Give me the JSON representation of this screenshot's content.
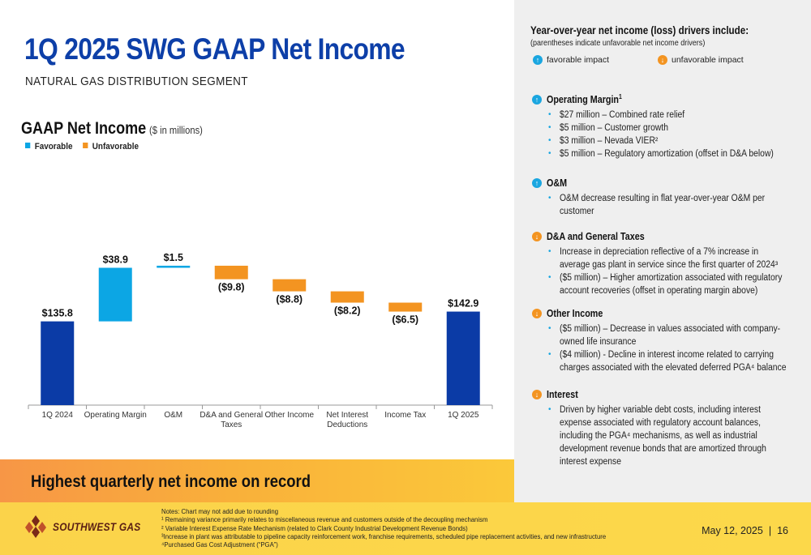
{
  "page": {
    "title": "1Q 2025 SWG GAAP Net Income",
    "subtitle": "NATURAL GAS DISTRIBUTION SEGMENT",
    "banner": "Highest quarterly net income on record",
    "date": "May 12, 2025",
    "separator": "|",
    "page_number": "16",
    "logo_text": "SOUTHWEST GAS"
  },
  "chart_heading": {
    "main": "GAAP Net Income",
    "unit": "($ in millions)"
  },
  "legend": {
    "favorable": "Favorable",
    "unfavorable": "Unfavorable"
  },
  "colors": {
    "total": "#0b3ba6",
    "favorable": "#0ca6e4",
    "unfavorable": "#f39421",
    "title": "#0d3fa8"
  },
  "chart_data": {
    "type": "bar",
    "subtype": "waterfall",
    "categories": [
      "1Q 2024",
      "Operating Margin",
      "O&M",
      "D&A and General Taxes",
      "Other Income",
      "Net Interest Deductions",
      "Income Tax",
      "1Q 2025"
    ],
    "category_lines": [
      [
        "1Q 2024"
      ],
      [
        "Operating Margin"
      ],
      [
        "O&M"
      ],
      [
        "D&A and General",
        "Taxes"
      ],
      [
        "Other Income"
      ],
      [
        "Net Interest",
        "Deductions"
      ],
      [
        "Income Tax"
      ],
      [
        "1Q 2025"
      ]
    ],
    "values": [
      135.8,
      38.9,
      1.5,
      -9.8,
      -8.8,
      -8.2,
      -6.5,
      142.9
    ],
    "kinds": [
      "total",
      "favorable",
      "favorable",
      "unfavorable",
      "unfavorable",
      "unfavorable",
      "unfavorable",
      "total"
    ],
    "labels": [
      "$135.8",
      "$38.9",
      "$1.5",
      "($9.8)",
      "($8.8)",
      "($8.2)",
      "($6.5)",
      "$142.9"
    ],
    "legend_position": "top-left",
    "grid": false
  },
  "right": {
    "heading": "Year-over-year net income (loss) drivers include:",
    "subheading": "(parentheses indicate unfavorable net income drivers)",
    "key_favorable": "favorable impact",
    "key_unfavorable": "unfavorable impact",
    "sections": [
      {
        "title": "Operating Margin",
        "sup": "1",
        "dir": "up",
        "bullets": [
          "$27 million – Combined rate relief",
          "$5 million – Customer growth",
          "$3 million – Nevada VIER²",
          "$5 million – Regulatory amortization (offset in D&A below)"
        ]
      },
      {
        "title": "O&M",
        "sup": "",
        "dir": "up",
        "bullets": [
          "O&M decrease resulting in flat year-over-year O&M per",
          "customer"
        ]
      },
      {
        "title": "D&A and General Taxes",
        "sup": "",
        "dir": "down",
        "bullets": [
          "Increase in depreciation reflective of a 7% increase in",
          "average gas plant in service since the first quarter of 2024³",
          "($5 million) – Higher amortization associated with regulatory",
          "account recoveries (offset in operating margin above)"
        ]
      },
      {
        "title": "Other Income",
        "sup": "",
        "dir": "down",
        "bullets": [
          "($5 million) – Decrease in values associated with company-",
          "owned life insurance",
          "($4 million) - Decline in interest income related to carrying",
          "charges associated with the elevated deferred PGA⁴ balance"
        ]
      },
      {
        "title": "Interest",
        "sup": "",
        "dir": "down",
        "bullets": [
          "Driven by higher variable debt costs, including interest",
          "expense associated with regulatory account balances,",
          "including the PGA⁴ mechanisms, as well as industrial",
          "development revenue bonds that are amortized through",
          "interest expense"
        ]
      }
    ]
  },
  "notes": [
    "Notes: Chart may not add due to rounding",
    "¹ Remaining variance primarily relates to miscellaneous revenue and customers outside of the decoupling mechanism",
    "² Variable Interest Expense Rate Mechanism (related to Clark County Industrial Development Revenue Bonds)",
    "³Increase in plant was attributable to pipeline capacity reinforcement work, franchise requirements, scheduled pipe replacement activities, and new infrastructure",
    "⁴Purchased Gas Cost Adjustment (“PGA”)"
  ]
}
